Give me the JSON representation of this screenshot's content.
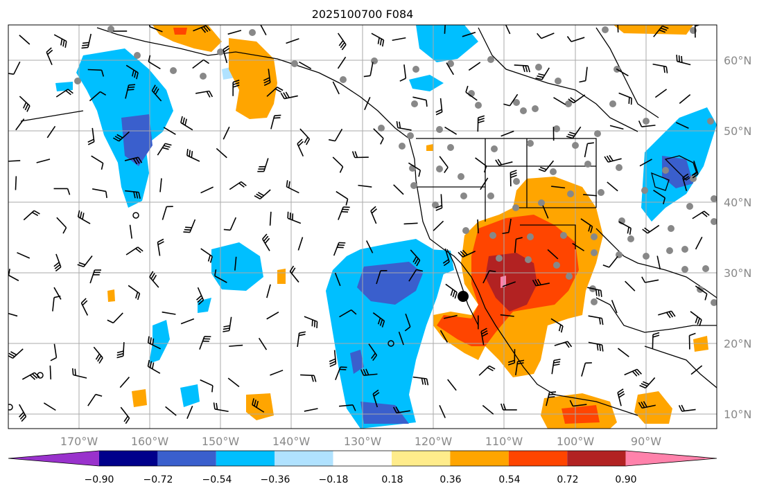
{
  "title": "2025100700 F084",
  "lat_ticks": [
    "60°N",
    "50°N",
    "40°N",
    "30°N",
    "20°N",
    "10°N"
  ],
  "lon_ticks": [
    "170°W",
    "160°W",
    "150°W",
    "140°W",
    "130°W",
    "120°W",
    "110°W",
    "100°W",
    "90°W"
  ],
  "colorbar": {
    "labels": [
      "−0.90",
      "−0.72",
      "−0.54",
      "−0.36",
      "−0.18",
      "0.18",
      "0.36",
      "0.54",
      "0.72",
      "0.90"
    ],
    "colors": [
      "#9932cc",
      "#00008b",
      "#3a5fcd",
      "#00bfff",
      "#b0e2ff",
      "#ffffff",
      "#ffec8b",
      "#ffa500",
      "#ff4500",
      "#b22222",
      "#ff82ab"
    ]
  },
  "palette": {
    "grid": "#aaaaaa",
    "coast": "#000000",
    "station": "#888888",
    "barb": "#000000"
  }
}
